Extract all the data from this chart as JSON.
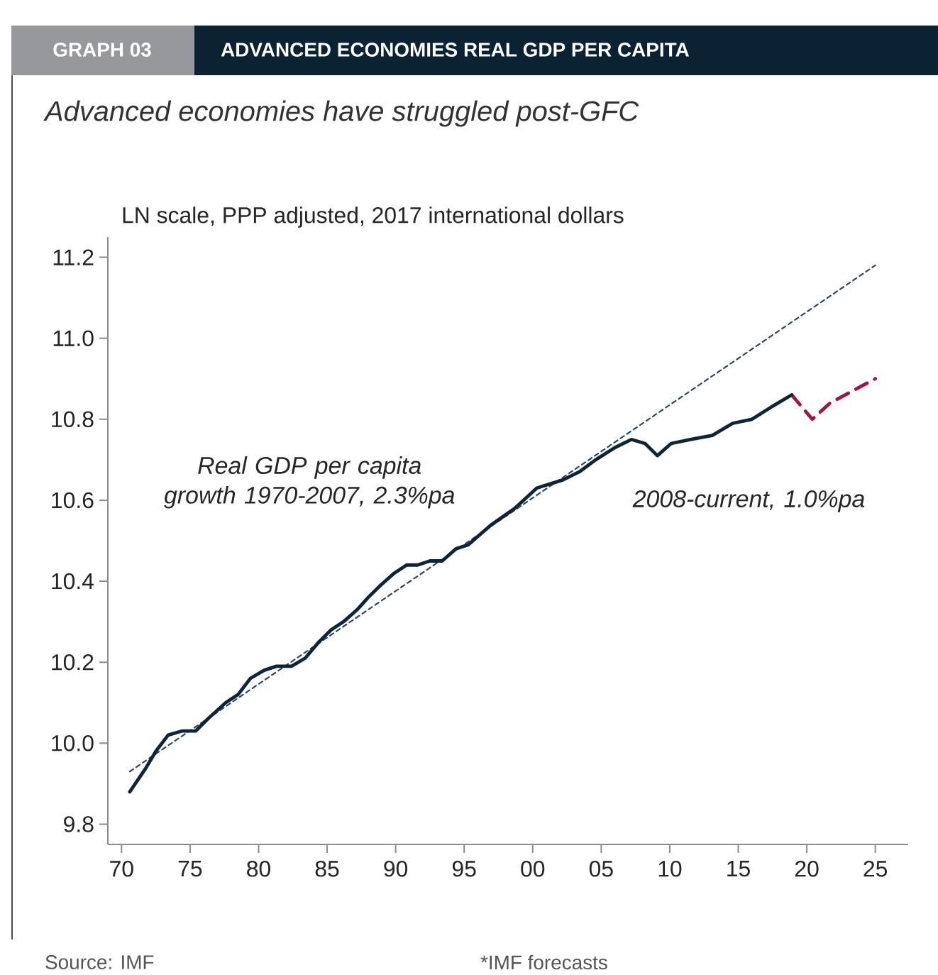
{
  "chart_data": {
    "type": "line",
    "title": "ADVANCED ECONOMIES REAL GDP PER CAPITA",
    "subtitle": "Advanced economies have struggled post-GFC",
    "ylabel": "LN scale, PPP adjusted, 2017 international dollars",
    "xlim": [
      1969,
      2027.4
    ],
    "ylim": [
      9.75,
      11.25
    ],
    "xticks": [
      {
        "value": 1970,
        "label": "70"
      },
      {
        "value": 1975,
        "label": "75"
      },
      {
        "value": 1980,
        "label": "80"
      },
      {
        "value": 1985,
        "label": "85"
      },
      {
        "value": 1990,
        "label": "90"
      },
      {
        "value": 1995,
        "label": "95"
      },
      {
        "value": 2000,
        "label": "00"
      },
      {
        "value": 2005,
        "label": "05"
      },
      {
        "value": 2010,
        "label": "10"
      },
      {
        "value": 2015,
        "label": "15"
      },
      {
        "value": 2020,
        "label": "20"
      },
      {
        "value": 2025,
        "label": "25"
      }
    ],
    "yticks": [
      {
        "value": 9.8,
        "label": "9.8"
      },
      {
        "value": 10.0,
        "label": "10.0"
      },
      {
        "value": 10.2,
        "label": "10.2"
      },
      {
        "value": 10.4,
        "label": "10.4"
      },
      {
        "value": 10.6,
        "label": "10.6"
      },
      {
        "value": 10.8,
        "label": "10.8"
      },
      {
        "value": 11.0,
        "label": "11.0"
      },
      {
        "value": 11.2,
        "label": "11.2"
      }
    ],
    "grid": false,
    "marker": "none",
    "series": [
      {
        "color": "#0d2536",
        "line_style": "solid",
        "x": [
          1970.6,
          1971.8,
          1972.5,
          1973.4,
          1974.4,
          1975.4,
          1976.3,
          1977.6,
          1978.5,
          1979.4,
          1980.4,
          1981.3,
          1982.4,
          1983.4,
          1984.4,
          1985.3,
          1986.2,
          1987.2,
          1988.0,
          1988.9,
          1989.9,
          1990.8,
          1991.6,
          1992.5,
          1993.4,
          1994.4,
          1995.3,
          1997.0,
          1998.7,
          2000.3,
          2002.2,
          2003.4,
          2004.6,
          2006.0,
          2007.2,
          2008.2,
          2009.1,
          2010.1,
          2011.5,
          2013.1,
          2014.6,
          2016.0,
          2017.4,
          2018.9
        ],
        "values": [
          9.88,
          9.94,
          9.98,
          10.02,
          10.03,
          10.03,
          10.06,
          10.1,
          10.12,
          10.16,
          10.18,
          10.19,
          10.19,
          10.21,
          10.25,
          10.28,
          10.3,
          10.33,
          10.36,
          10.39,
          10.42,
          10.44,
          10.44,
          10.45,
          10.45,
          10.48,
          10.49,
          10.54,
          10.58,
          10.63,
          10.65,
          10.67,
          10.7,
          10.73,
          10.75,
          10.74,
          10.71,
          10.74,
          10.75,
          10.76,
          10.79,
          10.8,
          10.83,
          10.86
        ]
      },
      {
        "color": "#a3134a",
        "line_style": "dashed",
        "x": [
          2018.9,
          2020.4,
          2021.7,
          2025.0
        ],
        "values": [
          10.86,
          10.8,
          10.84,
          10.9
        ]
      },
      {
        "color": "#2e4a62",
        "line_style": "dotted",
        "x": [
          1970.6,
          2025.0
        ],
        "values": [
          9.93,
          11.18
        ]
      }
    ],
    "annotations": [
      "Real GDP per capita growth 1970-2007, 2.3%pa",
      "2008-current, 1.0%pa",
      "GRAPH 03",
      "Source: IMF",
      "*IMF forecasts"
    ]
  }
}
